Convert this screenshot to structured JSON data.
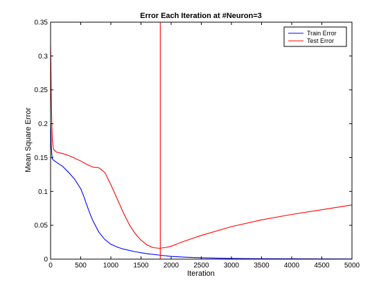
{
  "chart_data": {
    "type": "line",
    "title": "Error Each Iteration at #Neuron=3",
    "xlabel": "Iteration",
    "ylabel": "Mean Square Error",
    "xlim": [
      0,
      5000
    ],
    "ylim": [
      0,
      0.35
    ],
    "xticks": [
      0,
      500,
      1000,
      1500,
      2000,
      2500,
      3000,
      3500,
      4000,
      4500,
      5000
    ],
    "yticks": [
      0,
      0.05,
      0.1,
      0.15,
      0.2,
      0.25,
      0.3,
      0.35
    ],
    "grid": false,
    "legend_position": "top-right",
    "vline": {
      "x": 1820,
      "color": "#ff0000"
    },
    "series": [
      {
        "name": "Train Error",
        "color": "#0000ff",
        "x": [
          0,
          5,
          10,
          20,
          30,
          50,
          100,
          200,
          300,
          400,
          500,
          550,
          600,
          650,
          700,
          800,
          900,
          1000,
          1100,
          1200,
          1400,
          1600,
          1800,
          2000,
          2200,
          2500,
          3000,
          3500,
          4000,
          4500,
          5000
        ],
        "y": [
          0.2,
          0.19,
          0.17,
          0.155,
          0.148,
          0.146,
          0.143,
          0.137,
          0.128,
          0.118,
          0.104,
          0.093,
          0.08,
          0.068,
          0.057,
          0.04,
          0.029,
          0.022,
          0.018,
          0.015,
          0.011,
          0.008,
          0.006,
          0.004,
          0.003,
          0.002,
          0.001,
          0.0006,
          0.0004,
          0.0003,
          0.0002
        ]
      },
      {
        "name": "Test Error",
        "color": "#ff0000",
        "x": [
          0,
          5,
          10,
          20,
          30,
          50,
          100,
          200,
          300,
          400,
          500,
          600,
          700,
          800,
          900,
          1000,
          1100,
          1200,
          1300,
          1400,
          1500,
          1600,
          1700,
          1800,
          1900,
          2000,
          2200,
          2500,
          3000,
          3500,
          4000,
          4500,
          5000
        ],
        "y": [
          0.315,
          0.29,
          0.25,
          0.2,
          0.175,
          0.162,
          0.158,
          0.156,
          0.153,
          0.149,
          0.145,
          0.14,
          0.136,
          0.135,
          0.128,
          0.11,
          0.09,
          0.07,
          0.052,
          0.038,
          0.028,
          0.021,
          0.017,
          0.016,
          0.017,
          0.019,
          0.026,
          0.035,
          0.048,
          0.058,
          0.066,
          0.073,
          0.08
        ]
      }
    ]
  }
}
